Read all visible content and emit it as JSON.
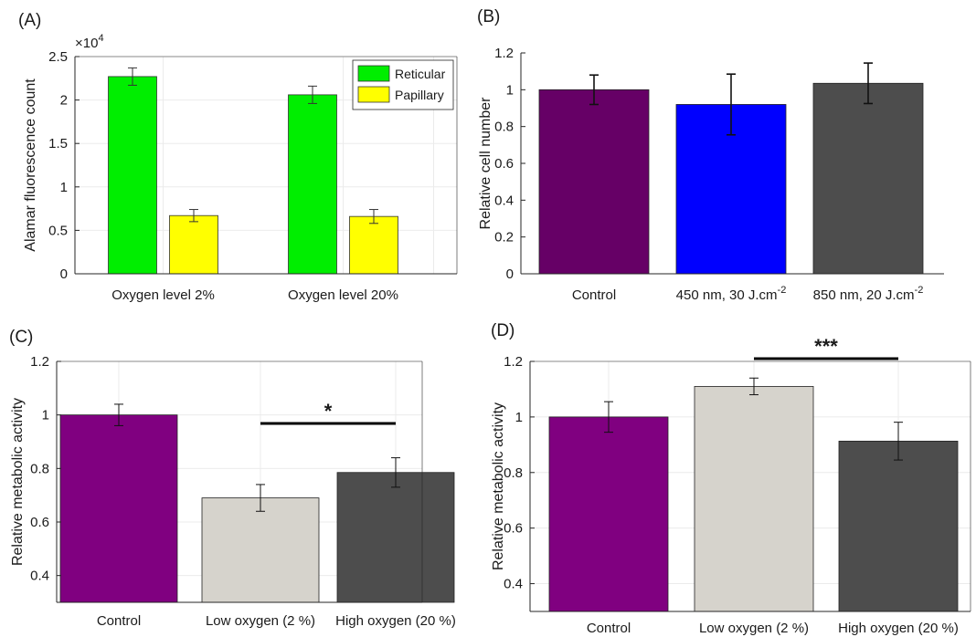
{
  "chart_data": [
    {
      "panel": "(A)",
      "type": "bar",
      "categories": [
        "Oxygen level 2%",
        "Oxygen level 20%"
      ],
      "series": [
        {
          "name": "Reticular",
          "values": [
            22700,
            20600
          ],
          "errors": [
            1000,
            1000
          ],
          "color": "#00ee00"
        },
        {
          "name": "Papillary",
          "values": [
            6700,
            6600
          ],
          "errors": [
            700,
            800
          ],
          "color": "#ffff00"
        }
      ],
      "ylabel": "Alamar fluorescence count",
      "ylim": [
        0,
        25000
      ],
      "yticks": [
        0,
        0.5,
        1,
        1.5,
        2,
        2.5
      ],
      "yscale_label": "×10",
      "yscale_exp": "4",
      "grid": true,
      "legend": "top-right"
    },
    {
      "panel": "(B)",
      "type": "bar",
      "categories": [
        "Control",
        "450 nm, 30 J.cm",
        "850 nm, 20 J.cm"
      ],
      "category_superscripts": [
        "",
        "-2",
        "-2"
      ],
      "values": [
        1.0,
        0.92,
        1.035
      ],
      "errors": [
        0.08,
        0.165,
        0.11
      ],
      "colors": [
        "#660066",
        "#0000ff",
        "#4d4d4d"
      ],
      "ylabel": "Relative cell number",
      "ylim": [
        0,
        1.2
      ],
      "yticks": [
        0,
        0.2,
        0.4,
        0.6,
        0.8,
        1,
        1.2
      ],
      "grid": false
    },
    {
      "panel": "(C)",
      "type": "bar",
      "categories": [
        "Control",
        "Low oxygen (2 %)",
        "High oxygen (20 %)"
      ],
      "values": [
        1.0,
        0.69,
        0.785
      ],
      "errors": [
        0.04,
        0.05,
        0.055
      ],
      "colors": [
        "#800080",
        "#d6d3cc",
        "#4d4d4d"
      ],
      "ylabel": "Relative metabolic activity",
      "ylim": [
        0.3,
        1.2
      ],
      "yticks": [
        0.4,
        0.6,
        0.8,
        1,
        1.2
      ],
      "grid": true,
      "significance": {
        "from": 1,
        "to": 2,
        "label": "*"
      }
    },
    {
      "panel": "(D)",
      "type": "bar",
      "categories": [
        "Control",
        "Low oxygen (2 %)",
        "High oxygen (20 %)"
      ],
      "values": [
        1.0,
        1.11,
        0.913
      ],
      "errors": [
        0.055,
        0.03,
        0.068
      ],
      "colors": [
        "#800080",
        "#d6d3cc",
        "#4d4d4d"
      ],
      "ylabel": "Relative metabolic activity",
      "ylim": [
        0.3,
        1.2
      ],
      "yticks": [
        0.4,
        0.6,
        0.8,
        1,
        1.2
      ],
      "grid": true,
      "significance": {
        "from": 1,
        "to": 2,
        "label": "***"
      }
    }
  ]
}
